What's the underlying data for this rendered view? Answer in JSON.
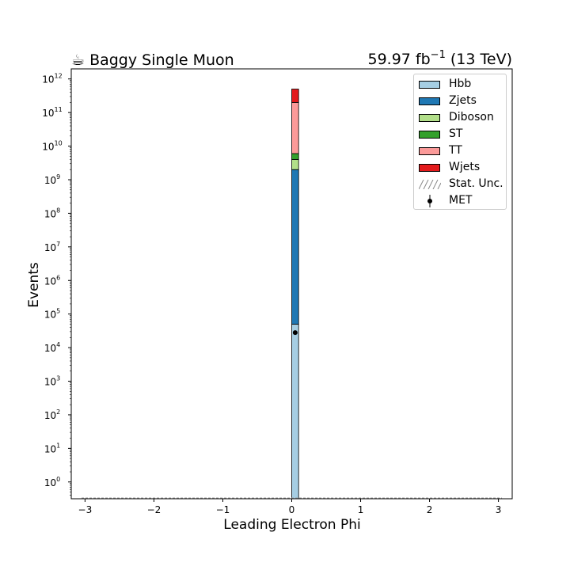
{
  "title_left": "☕ Baggy Single Muon",
  "title_right_value": "59.97 fb",
  "title_right_exp": "−1",
  "title_right_suffix": " (13 TeV)",
  "chart_data": {
    "type": "bar",
    "stacked": true,
    "log_y": true,
    "xlabel": "Leading Electron Phi",
    "ylabel": "Events",
    "xlim": [
      -3.2,
      3.2
    ],
    "ylim_log10": [
      -0.5,
      12.3
    ],
    "x_ticks": [
      -3,
      -2,
      -1,
      0,
      1,
      2,
      3
    ],
    "y_ticks": [
      {
        "label": "10",
        "exp": "0"
      },
      {
        "label": "10",
        "exp": "1"
      },
      {
        "label": "10",
        "exp": "2"
      },
      {
        "label": "10",
        "exp": "3"
      },
      {
        "label": "10",
        "exp": "4"
      },
      {
        "label": "10",
        "exp": "5"
      },
      {
        "label": "10",
        "exp": "6"
      },
      {
        "label": "10",
        "exp": "7"
      },
      {
        "label": "10",
        "exp": "8"
      },
      {
        "label": "10",
        "exp": "9"
      },
      {
        "label": "10",
        "exp": "10"
      },
      {
        "label": "10",
        "exp": "11"
      },
      {
        "label": "10",
        "exp": "12"
      }
    ],
    "bin_low": 0.0,
    "bin_high": 0.1,
    "series": [
      {
        "name": "Hbb",
        "color": "#a6cee3",
        "cumulative_top": 50000
      },
      {
        "name": "Zjets",
        "color": "#1f78b4",
        "cumulative_top": 2000000000
      },
      {
        "name": "Diboson",
        "color": "#b2df8a",
        "cumulative_top": 4000000000
      },
      {
        "name": "ST",
        "color": "#33a02c",
        "cumulative_top": 6000000000
      },
      {
        "name": "TT",
        "color": "#fb9a99",
        "cumulative_top": 200000000000
      },
      {
        "name": "Wjets",
        "color": "#e31a1c",
        "cumulative_top": 500000000000
      }
    ],
    "data_points": [
      {
        "name": "MET",
        "x": 0.05,
        "y": 28000
      }
    ],
    "legend": {
      "position": "top-right",
      "entries": [
        "Hbb",
        "Zjets",
        "Diboson",
        "ST",
        "TT",
        "Wjets",
        "Stat. Unc.",
        "MET"
      ]
    }
  }
}
